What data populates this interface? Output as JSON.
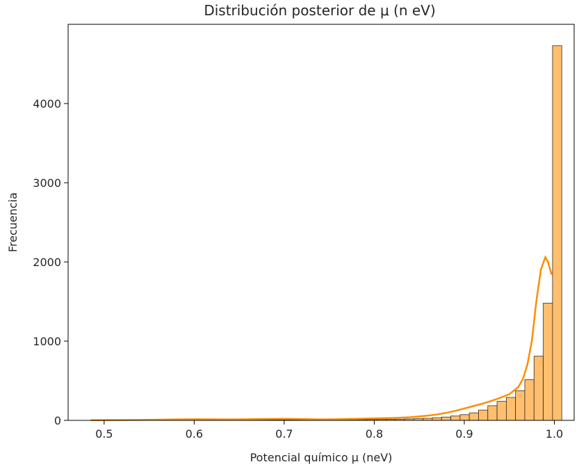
{
  "chart_data": {
    "type": "bar",
    "title": "Distribución posterior de μ (n eV)",
    "xlabel": "Potencial químico μ (neV)",
    "ylabel": "Frecuencia",
    "xlim": [
      0.46,
      1.022
    ],
    "ylim": [
      0,
      5000
    ],
    "x_ticks": [
      0.5,
      0.6,
      0.7,
      0.8,
      0.9,
      1.0
    ],
    "x_tick_labels": [
      "0.5",
      "0.6",
      "0.7",
      "0.8",
      "0.9",
      "1.0"
    ],
    "y_ticks": [
      0,
      1000,
      2000,
      3000,
      4000
    ],
    "y_tick_labels": [
      "0",
      "1000",
      "2000",
      "3000",
      "4000"
    ],
    "bar_color": "#ffbf6f",
    "bar_edge_color": "#3a2a15",
    "kde_color": "#ff8c00",
    "bins": {
      "start": 0.4845,
      "width": 0.01027,
      "counts": [
        1,
        0,
        1,
        1,
        1,
        2,
        2,
        2,
        3,
        3,
        3,
        3,
        3,
        3,
        4,
        3,
        4,
        4,
        5,
        6,
        7,
        8,
        7,
        6,
        5,
        6,
        8,
        9,
        10,
        10,
        11,
        12,
        13,
        15,
        18,
        22,
        26,
        33,
        42,
        55,
        72,
        95,
        130,
        185,
        240,
        290,
        375,
        515,
        810,
        1480,
        4730
      ]
    },
    "kde": {
      "x": [
        0.485,
        0.5,
        0.52,
        0.54,
        0.56,
        0.58,
        0.6,
        0.62,
        0.64,
        0.66,
        0.68,
        0.7,
        0.72,
        0.74,
        0.76,
        0.78,
        0.8,
        0.82,
        0.84,
        0.86,
        0.87,
        0.88,
        0.89,
        0.9,
        0.91,
        0.92,
        0.93,
        0.94,
        0.95,
        0.96,
        0.965,
        0.97,
        0.975,
        0.98,
        0.985,
        0.99,
        0.993,
        0.997
      ],
      "y": [
        2,
        3,
        4,
        6,
        9,
        12,
        14,
        13,
        12,
        14,
        18,
        20,
        16,
        12,
        14,
        20,
        25,
        30,
        40,
        60,
        75,
        95,
        120,
        150,
        180,
        210,
        245,
        285,
        330,
        420,
        520,
        700,
        1000,
        1500,
        1900,
        2060,
        2000,
        1840
      ]
    }
  }
}
